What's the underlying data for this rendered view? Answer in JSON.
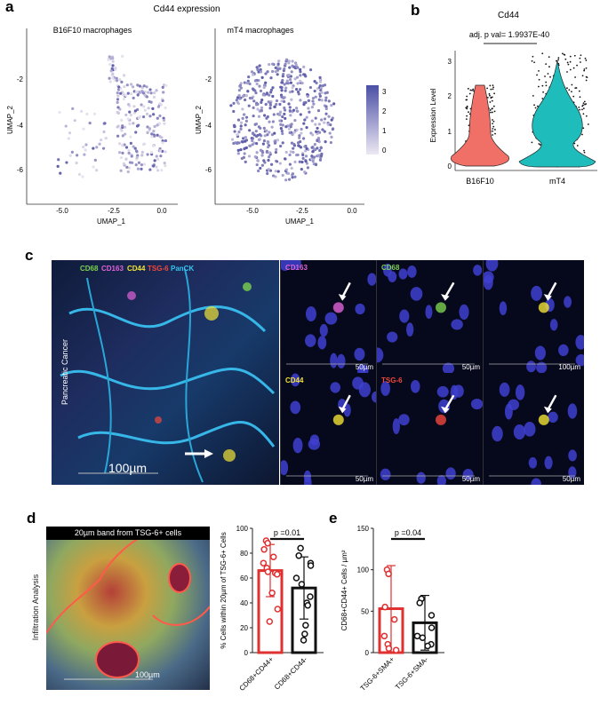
{
  "panels": {
    "a": "a",
    "b": "b",
    "c": "c",
    "d": "d",
    "e": "e"
  },
  "panel_a": {
    "title": "Cd44 expression",
    "left_subtitle": "B16F10 macrophages",
    "right_subtitle": "mT4 macrophages",
    "colorbar_ticks": [
      "3",
      "2",
      "1",
      "0"
    ],
    "colors": {
      "low": "#e8e2ee",
      "high": "#5b5aa8"
    }
  },
  "panel_c": {
    "legend": [
      {
        "text": "CD68",
        "color": "#7ad14f"
      },
      {
        "text": "CD163",
        "color": "#e063d8"
      },
      {
        "text": "CD44",
        "color": "#f2e234"
      },
      {
        "text": "TSG-6",
        "color": "#f0473c"
      },
      {
        "text": "PanCK",
        "color": "#34c8f0"
      }
    ],
    "side_label": "Pancreatic Cancer",
    "main_scale": "100µm",
    "tiles": [
      {
        "label": "CD163",
        "color": "#e063d8",
        "scale": "50µm"
      },
      {
        "label": "CD68",
        "color": "#7ad14f",
        "scale": "50µm"
      },
      {
        "label": "",
        "color": "#ffffff",
        "scale": "100µm"
      },
      {
        "label": "CD44",
        "color": "#f2e234",
        "scale": "50µm"
      },
      {
        "label": "TSG-6",
        "color": "#f0473c",
        "scale": "50µm"
      },
      {
        "label": "",
        "color": "#ffffff",
        "scale": "50µm"
      }
    ]
  },
  "panel_d": {
    "image_title": "20µm band from TSG-6+ cells",
    "side_label": "Infiltration Analysis",
    "scale": "100µm"
  },
  "chart_data": [
    {
      "id": "a-left",
      "type": "scatter",
      "xlabel": "UMAP_1",
      "ylabel": "UMAP_2",
      "xlim": [
        -6.5,
        1.0
      ],
      "ylim": [
        -7,
        0
      ],
      "xticks": [
        "-5.0",
        "-2.5",
        "0.0"
      ],
      "yticks": [
        "-2",
        "-4",
        "-6"
      ]
    },
    {
      "id": "a-right",
      "type": "scatter",
      "xlabel": "UMAP_1",
      "ylabel": "UMAP_2",
      "xlim": [
        -6.5,
        1.0
      ],
      "ylim": [
        -7,
        0
      ],
      "xticks": [
        "-5.0",
        "-2.5",
        "0.0"
      ],
      "yticks": [
        "-2",
        "-4",
        "-6"
      ]
    },
    {
      "id": "b",
      "type": "violin",
      "title": "Cd44",
      "ylabel": "Expression Level",
      "categories": [
        "B16F10",
        "mT4"
      ],
      "ylim": [
        0,
        3.4
      ],
      "yticks": [
        "0",
        "1",
        "2",
        "3"
      ],
      "annotation": "adj. p val= 1.9937E-40",
      "colors": [
        "#f07068",
        "#1fbcbc"
      ]
    },
    {
      "id": "d",
      "type": "bar",
      "ylabel": "% Cells within 20µm of TSG-6+ Cells",
      "categories": [
        "CD68+CD44+",
        "CD68+CD44-"
      ],
      "values": [
        66,
        52
      ],
      "errors": [
        21,
        25
      ],
      "ylim": [
        0,
        100
      ],
      "yticks": [
        "0",
        "20",
        "40",
        "60",
        "80",
        "100"
      ],
      "points": [
        [
          90,
          88,
          83,
          77,
          72,
          68,
          65,
          64,
          63,
          48,
          35,
          25
        ],
        [
          84,
          78,
          72,
          70,
          60,
          55,
          45,
          40,
          38,
          22,
          15,
          10
        ]
      ],
      "annotation": "p =0.01",
      "colors": [
        "#e03030",
        "#111111"
      ]
    },
    {
      "id": "e",
      "type": "bar",
      "ylabel": "CD68+CD44+ Cells / µm²",
      "categories": [
        "TSG-6+SMA+",
        "TSG-6+SMA-"
      ],
      "values": [
        53,
        36
      ],
      "errors": [
        52,
        33
      ],
      "ylim": [
        0,
        150
      ],
      "yticks": [
        "0",
        "50",
        "100",
        "150"
      ],
      "points": [
        [
          100,
          95,
          55,
          40,
          20,
          10,
          5,
          3
        ],
        [
          65,
          60,
          45,
          30,
          20,
          18,
          10,
          8
        ]
      ],
      "annotation": "p =0.04",
      "colors": [
        "#e03030",
        "#111111"
      ]
    }
  ]
}
